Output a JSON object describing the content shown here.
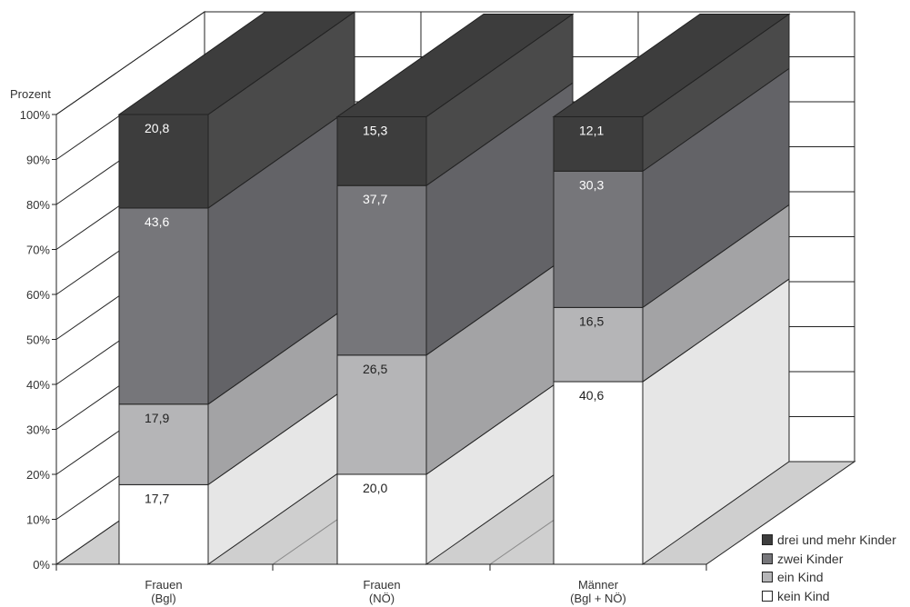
{
  "chart_data": {
    "type": "bar",
    "stacked": true,
    "three_d": true,
    "ylabel": "Prozent",
    "ylim": [
      0,
      100
    ],
    "yticks": [
      "0%",
      "10%",
      "20%",
      "30%",
      "40%",
      "50%",
      "60%",
      "70%",
      "80%",
      "90%",
      "100%"
    ],
    "categories": [
      {
        "line1": "Frauen",
        "line2": "(Bgl)"
      },
      {
        "line1": "Frauen",
        "line2": "(NÖ)"
      },
      {
        "line1": "Männer",
        "line2": "(Bgl + NÖ)"
      }
    ],
    "series": [
      {
        "name": "kein Kind",
        "values": [
          17.7,
          20.0,
          40.6
        ],
        "labels": [
          "17,7",
          "20,0",
          "40,6"
        ],
        "color": "#ffffff",
        "side": "#e6e6e6",
        "text": "#222222"
      },
      {
        "name": "ein Kind",
        "values": [
          17.9,
          26.5,
          16.5
        ],
        "labels": [
          "17,9",
          "26,5",
          "16,5"
        ],
        "color": "#b5b5b7",
        "side": "#a3a3a5",
        "text": "#222222"
      },
      {
        "name": "zwei Kinder",
        "values": [
          43.6,
          37.7,
          30.3
        ],
        "labels": [
          "43,6",
          "37,7",
          "30,3"
        ],
        "color": "#76767a",
        "side": "#636367",
        "text": "#ffffff"
      },
      {
        "name": "drei und mehr Kinder",
        "values": [
          20.8,
          15.3,
          12.1
        ],
        "labels": [
          "20,8",
          "15,3",
          "12,1"
        ],
        "color": "#3d3d3d",
        "side": "#4a4a4a",
        "text": "#ffffff"
      }
    ],
    "legend_position": "bottom-right",
    "grid": true
  }
}
